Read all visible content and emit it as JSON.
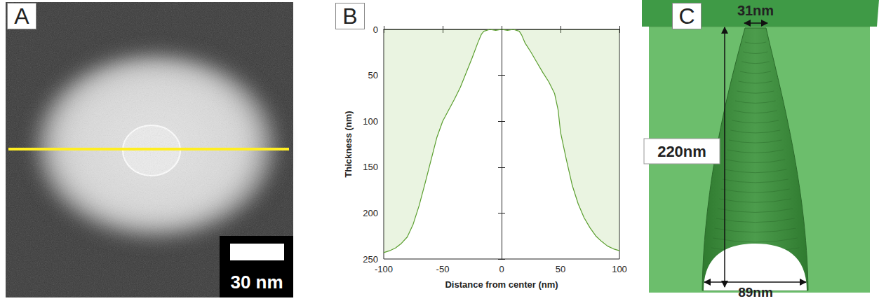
{
  "chart_data": {
    "type": "line",
    "title": "B",
    "x_label": "Distance from center (nm)",
    "y_label": "Thickness (nm)",
    "x": [
      -100,
      -95,
      -90,
      -85,
      -80,
      -75,
      -70,
      -65,
      -60,
      -55,
      -50,
      -45,
      -40,
      -35,
      -30,
      -25,
      -20,
      -17,
      -15,
      -10,
      -5,
      0,
      5,
      10,
      15,
      17,
      20,
      25,
      30,
      35,
      40,
      45,
      48,
      50,
      55,
      60,
      65,
      70,
      75,
      80,
      85,
      90,
      95,
      100
    ],
    "values": [
      243,
      241,
      238,
      233,
      226,
      212,
      192,
      168,
      143,
      118,
      100,
      88,
      76,
      63,
      47,
      31,
      14,
      5,
      2,
      0,
      1,
      0,
      1,
      0,
      2,
      6,
      15,
      25,
      36,
      47,
      57,
      70,
      88,
      112,
      142,
      170,
      190,
      205,
      216,
      225,
      231,
      236,
      239,
      241
    ],
    "color": "#5a9e2e",
    "xlim": [
      -100,
      100
    ],
    "xticks": [
      -100,
      -50,
      0,
      50,
      100
    ],
    "ylim": [
      0,
      250
    ],
    "yticks": [
      0,
      50,
      100,
      150,
      200,
      250
    ],
    "vlines": [
      0
    ],
    "grid": false
  },
  "image_panel": {
    "letter": "A",
    "scale_bar": "30 nm"
  },
  "model_panel": {
    "letter": "C",
    "top_width": "31nm",
    "height": "220nm",
    "bottom_width": "89nm"
  }
}
